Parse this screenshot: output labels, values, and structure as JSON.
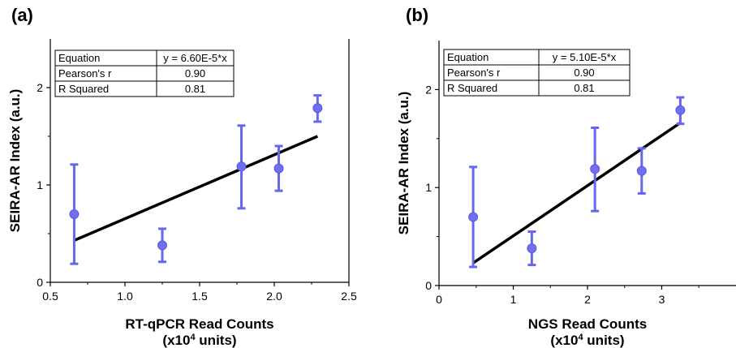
{
  "chart_data": [
    {
      "type": "scatter",
      "panel_label": "(a)",
      "xlabel_line1": "RT-qPCR Read Counts",
      "xlabel_line2_prefix": "(x10",
      "xlabel_line2_sup": "4",
      "xlabel_line2_suffix": " units)",
      "ylabel": "SEIRA-AR Index (a.u.)",
      "xlim": [
        0.5,
        2.5
      ],
      "ylim": [
        0,
        2.5
      ],
      "xticks": [
        "0.5",
        "1.0",
        "1.5",
        "2.0",
        "2.5"
      ],
      "xtick_values": [
        0.5,
        1.0,
        1.5,
        2.0,
        2.5
      ],
      "yticks": [
        "0",
        "1",
        "2"
      ],
      "ytick_values": [
        0,
        1,
        2
      ],
      "points": [
        {
          "x": 0.66,
          "y": 0.7,
          "err_low": 0.19,
          "err_high": 1.21
        },
        {
          "x": 1.25,
          "y": 0.38,
          "err_low": 0.21,
          "err_high": 0.55
        },
        {
          "x": 1.78,
          "y": 1.19,
          "err_low": 0.76,
          "err_high": 1.61
        },
        {
          "x": 2.03,
          "y": 1.17,
          "err_low": 0.94,
          "err_high": 1.4
        },
        {
          "x": 2.29,
          "y": 1.79,
          "err_low": 1.65,
          "err_high": 1.92
        }
      ],
      "fit": {
        "x_start": 0.66,
        "y_start": 0.43,
        "x_end": 2.29,
        "y_end": 1.5
      },
      "fit_table": [
        [
          "Equation",
          "y = 6.60E-5*x"
        ],
        [
          "Pearson's r",
          "0.90"
        ],
        [
          "R Squared",
          "0.81"
        ]
      ]
    },
    {
      "type": "scatter",
      "panel_label": "(b)",
      "xlabel_line1": "NGS Read Counts",
      "xlabel_line2_prefix": "(x10",
      "xlabel_line2_sup": "4",
      "xlabel_line2_suffix": " units)",
      "ylabel": "SEIRA-AR Index (a.u.)",
      "xlim": [
        0,
        4
      ],
      "ylim": [
        0,
        2.5
      ],
      "xticks": [
        "0",
        "1",
        "2",
        "3"
      ],
      "xtick_values": [
        0,
        1,
        2,
        3
      ],
      "yticks": [
        "0",
        "1",
        "2"
      ],
      "ytick_values": [
        0,
        1,
        2
      ],
      "points": [
        {
          "x": 0.46,
          "y": 0.7,
          "err_low": 0.19,
          "err_high": 1.21
        },
        {
          "x": 1.25,
          "y": 0.38,
          "err_low": 0.21,
          "err_high": 0.55
        },
        {
          "x": 2.1,
          "y": 1.19,
          "err_low": 0.76,
          "err_high": 1.61
        },
        {
          "x": 2.73,
          "y": 1.17,
          "err_low": 0.94,
          "err_high": 1.4
        },
        {
          "x": 3.25,
          "y": 1.79,
          "err_low": 1.65,
          "err_high": 1.92
        }
      ],
      "fit": {
        "x_start": 0.46,
        "y_start": 0.23,
        "x_end": 3.25,
        "y_end": 1.66
      },
      "fit_table": [
        [
          "Equation",
          "y = 5.10E-5*x"
        ],
        [
          "Pearson's r",
          "0.90"
        ],
        [
          "R Squared",
          "0.81"
        ]
      ]
    }
  ],
  "colors": {
    "marker": "#7070ee",
    "errorbar": "#6666ee",
    "fit_line": "#000000",
    "axis": "#000000"
  }
}
